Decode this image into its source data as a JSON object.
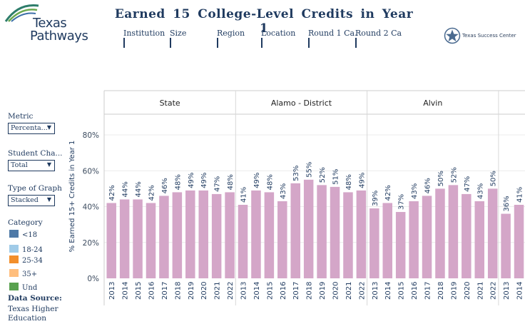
{
  "header": {
    "logo_line1": "Texas",
    "logo_line2": "Pathways",
    "title": "Earned 15 College-Level Credits in Year 1",
    "right_logo": "Texas Success Center"
  },
  "filters": [
    "Institution",
    "Size",
    "Region",
    "Location",
    "Round 1 Ca.",
    "Round 2 Ca"
  ],
  "sidebar": {
    "metric_label": "Metric",
    "metric_value": "Percenta...",
    "student_label": "Student Cha...",
    "student_value": "Total",
    "graph_label": "Type of Graph",
    "graph_value": "Stacked",
    "category_label": "Category",
    "categories": [
      {
        "label": "<18",
        "color": "#4e79a7"
      },
      {
        "label": "18-24",
        "color": "#a0cbe8"
      },
      {
        "label": "25-34",
        "color": "#f28e2b"
      },
      {
        "label": "35+",
        "color": "#ffbe7d"
      },
      {
        "label": "Und",
        "color": "#59a14f"
      }
    ],
    "source_label": "Data Source:",
    "source_line1": "Texas Higher",
    "source_line2": "Education"
  },
  "chart_data": {
    "type": "bar",
    "ylabel": "% Earned 15+ Credits in Year 1",
    "yticks": [
      "0%",
      "20%",
      "40%",
      "60%",
      "80%"
    ],
    "ytick_values": [
      0,
      20,
      40,
      60,
      80
    ],
    "ylim": [
      0,
      90
    ],
    "bar_color": "#d4a6c8",
    "panels": [
      {
        "name": "State",
        "years": [
          "2013",
          "2014",
          "2015",
          "2016",
          "2017",
          "2018",
          "2019",
          "2020",
          "2021",
          "2022"
        ],
        "values": [
          42,
          44,
          44,
          42,
          46,
          48,
          49,
          49,
          47,
          48
        ]
      },
      {
        "name": "Alamo - District",
        "years": [
          "2013",
          "2014",
          "2015",
          "2016",
          "2017",
          "2018",
          "2019",
          "2020",
          "2021",
          "2022"
        ],
        "values": [
          41,
          49,
          48,
          43,
          53,
          55,
          52,
          51,
          48,
          49
        ]
      },
      {
        "name": "Alvin",
        "years": [
          "2013",
          "2014",
          "2015",
          "2016",
          "2017",
          "2018",
          "2019",
          "2020",
          "2021",
          "2022"
        ],
        "values": [
          39,
          42,
          37,
          43,
          46,
          50,
          52,
          47,
          43,
          50
        ]
      },
      {
        "name": "",
        "years": [
          "2013",
          "2014"
        ],
        "values": [
          36,
          41
        ]
      }
    ]
  }
}
